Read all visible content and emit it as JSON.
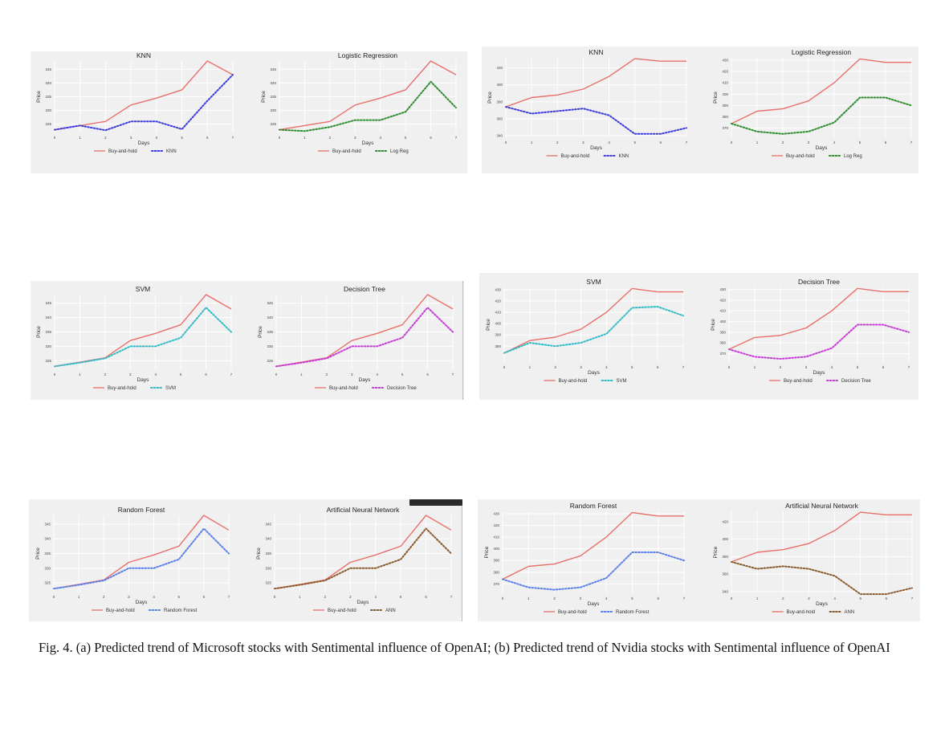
{
  "caption": "Fig. 4. (a) Predicted trend of Microsoft stocks with Sentimental influence of OpenAI; (b) Predicted trend of Nvidia stocks with Sentimental influence of OpenAI",
  "colors": {
    "buy_hold": "#e8706a",
    "knn": "#3b3bdc",
    "log_reg": "#2e8b2e",
    "svm": "#30bcc8",
    "decision_tree": "#c63bd8",
    "random_forest": "#5b7fe8",
    "ann": "#8b5a2b",
    "panel_bg": "#f0f0f0",
    "grid": "#ffffff"
  },
  "chart_data": [
    {
      "type": "line",
      "title": "KNN",
      "xlabel": "Days",
      "ylabel": "Price",
      "x": [
        0,
        1,
        2,
        3,
        4,
        5,
        6,
        7
      ],
      "xlim": [
        0,
        7
      ],
      "ylim": [
        322,
        348
      ],
      "yticks": [
        325,
        330,
        335,
        340,
        345
      ],
      "series": [
        {
          "name": "Buy-and-hold",
          "style": "solid",
          "color": "#e8706a",
          "values": [
            323,
            324.5,
            326,
            332,
            334.5,
            337.5,
            348,
            343
          ]
        },
        {
          "name": "KNN",
          "style": "dotted",
          "color": "#3b3bdc",
          "values": [
            323,
            324.5,
            322.8,
            326,
            326,
            323.2,
            333.5,
            343
          ]
        }
      ]
    },
    {
      "type": "line",
      "title": "Logistic Regression",
      "xlabel": "Days",
      "ylabel": "Price",
      "x": [
        0,
        1,
        2,
        3,
        4,
        5,
        6,
        7
      ],
      "xlim": [
        0,
        7
      ],
      "ylim": [
        322,
        348
      ],
      "yticks": [
        325,
        330,
        335,
        340,
        345
      ],
      "series": [
        {
          "name": "Buy-and-hold",
          "style": "solid",
          "color": "#e8706a",
          "values": [
            323,
            324.5,
            326,
            332,
            334.5,
            337.5,
            348,
            343
          ]
        },
        {
          "name": "Log Reg",
          "style": "dotted",
          "color": "#2e8b2e",
          "values": [
            323,
            322.5,
            324,
            326.5,
            326.5,
            329.5,
            340.5,
            331
          ]
        }
      ]
    },
    {
      "type": "line",
      "title": "KNN",
      "xlabel": "Days",
      "ylabel": "Price",
      "x": [
        0,
        1,
        2,
        3,
        4,
        5,
        6,
        7
      ],
      "xlim": [
        0,
        7
      ],
      "ylim": [
        338,
        432
      ],
      "yticks": [
        340,
        360,
        380,
        400,
        420
      ],
      "series": [
        {
          "name": "Buy-and-hold",
          "style": "solid",
          "color": "#e8706a",
          "values": [
            374,
            385,
            388,
            395,
            410,
            431,
            428,
            428
          ]
        },
        {
          "name": "KNN",
          "style": "dotted",
          "color": "#3b3bdc",
          "values": [
            374,
            366,
            369,
            372,
            364,
            342,
            342,
            349
          ]
        }
      ]
    },
    {
      "type": "line",
      "title": "Logistic Regression",
      "xlabel": "Days",
      "ylabel": "Price",
      "x": [
        0,
        1,
        2,
        3,
        4,
        5,
        6,
        7
      ],
      "xlim": [
        0,
        7
      ],
      "ylim": [
        362,
        432
      ],
      "yticks": [
        370,
        380,
        390,
        400,
        410,
        420,
        430
      ],
      "series": [
        {
          "name": "Buy-and-hold",
          "style": "solid",
          "color": "#e8706a",
          "values": [
            374,
            385,
            387,
            394,
            410,
            431,
            428,
            428
          ]
        },
        {
          "name": "Log Reg",
          "style": "dotted",
          "color": "#2e8b2e",
          "values": [
            374,
            367,
            365,
            367,
            375,
            397,
            397,
            390
          ]
        }
      ]
    },
    {
      "type": "line",
      "title": "SVM",
      "xlabel": "Days",
      "ylabel": "Price",
      "x": [
        0,
        1,
        2,
        3,
        4,
        5,
        6,
        7
      ],
      "xlim": [
        0,
        7
      ],
      "ylim": [
        322,
        348
      ],
      "yticks": [
        325,
        330,
        335,
        340,
        345
      ],
      "series": [
        {
          "name": "Buy-and-hold",
          "style": "solid",
          "color": "#e8706a",
          "values": [
            323,
            324.5,
            326,
            332,
            334.5,
            337.5,
            348,
            343
          ]
        },
        {
          "name": "SVM",
          "style": "dotted",
          "color": "#30bcc8",
          "values": [
            323,
            324.3,
            325.8,
            330,
            330,
            333,
            343.5,
            335
          ]
        }
      ]
    },
    {
      "type": "line",
      "title": "Decision Tree",
      "xlabel": "Days",
      "ylabel": "Price",
      "x": [
        0,
        1,
        2,
        3,
        4,
        5,
        6,
        7
      ],
      "xlim": [
        0,
        7
      ],
      "ylim": [
        322,
        348
      ],
      "yticks": [
        325,
        330,
        335,
        340,
        345
      ],
      "series": [
        {
          "name": "Buy-and-hold",
          "style": "solid",
          "color": "#e8706a",
          "values": [
            323,
            324.5,
            326,
            332,
            334.5,
            337.5,
            348,
            343
          ]
        },
        {
          "name": "Decision Tree",
          "style": "dotted",
          "color": "#c63bd8",
          "values": [
            323,
            324.3,
            325.8,
            330,
            330,
            333,
            343.5,
            335
          ]
        }
      ]
    },
    {
      "type": "line",
      "title": "SVM",
      "xlabel": "Days",
      "ylabel": "Price",
      "x": [
        0,
        1,
        2,
        3,
        4,
        5,
        6,
        7
      ],
      "xlim": [
        0,
        7
      ],
      "ylim": [
        366,
        432
      ],
      "yticks": [
        380,
        390,
        400,
        410,
        420,
        430
      ],
      "series": [
        {
          "name": "Buy-and-hold",
          "style": "solid",
          "color": "#e8706a",
          "values": [
            374,
            385,
            388,
            395,
            410,
            431,
            428,
            428
          ]
        },
        {
          "name": "SVM",
          "style": "dotted",
          "color": "#30bcc8",
          "values": [
            374,
            383,
            380,
            383,
            391,
            414,
            415,
            407
          ]
        }
      ]
    },
    {
      "type": "line",
      "title": "Decision Tree",
      "xlabel": "Days",
      "ylabel": "Price",
      "x": [
        0,
        1,
        2,
        3,
        4,
        5,
        6,
        7
      ],
      "xlim": [
        0,
        7
      ],
      "ylim": [
        362,
        432
      ],
      "yticks": [
        370,
        380,
        390,
        400,
        410,
        420,
        430
      ],
      "series": [
        {
          "name": "Buy-and-hold",
          "style": "solid",
          "color": "#e8706a",
          "values": [
            374,
            385,
            387,
            394,
            410,
            431,
            428,
            428
          ]
        },
        {
          "name": "Decision Tree",
          "style": "dotted",
          "color": "#c63bd8",
          "values": [
            374,
            367,
            365,
            367,
            375,
            397,
            397,
            390
          ]
        }
      ]
    },
    {
      "type": "line",
      "title": "Random Forest",
      "xlabel": "Days",
      "ylabel": "Price",
      "x": [
        0,
        1,
        2,
        3,
        4,
        5,
        6,
        7
      ],
      "xlim": [
        0,
        7
      ],
      "ylim": [
        322,
        348
      ],
      "yticks": [
        325,
        330,
        335,
        340,
        345
      ],
      "series": [
        {
          "name": "Buy-and-hold",
          "style": "solid",
          "color": "#e8706a",
          "values": [
            323,
            324.5,
            326,
            332,
            334.5,
            337.5,
            348,
            343
          ]
        },
        {
          "name": "Random Forest",
          "style": "dotted",
          "color": "#5b7fe8",
          "values": [
            323,
            324.3,
            325.8,
            330,
            330,
            333,
            343.5,
            335
          ]
        }
      ]
    },
    {
      "type": "line",
      "title": "Artificial Neural Network",
      "xlabel": "Days",
      "ylabel": "Price",
      "x": [
        0,
        1,
        2,
        3,
        4,
        5,
        6,
        7
      ],
      "xlim": [
        0,
        7
      ],
      "ylim": [
        322,
        348
      ],
      "yticks": [
        325,
        330,
        335,
        340,
        345
      ],
      "series": [
        {
          "name": "Buy-and-hold",
          "style": "solid",
          "color": "#e8706a",
          "values": [
            323,
            324.5,
            326,
            332,
            334.5,
            337.5,
            348,
            343
          ]
        },
        {
          "name": "ANN",
          "style": "dotted",
          "color": "#8b5a2b",
          "values": [
            323,
            324.3,
            325.8,
            330,
            330,
            333,
            343.5,
            335
          ]
        }
      ]
    },
    {
      "type": "line",
      "title": "Random Forest",
      "xlabel": "Days",
      "ylabel": "Price",
      "x": [
        0,
        1,
        2,
        3,
        4,
        5,
        6,
        7
      ],
      "xlim": [
        0,
        7
      ],
      "ylim": [
        362,
        432
      ],
      "yticks": [
        370,
        380,
        390,
        400,
        410,
        420,
        430
      ],
      "series": [
        {
          "name": "Buy-and-hold",
          "style": "solid",
          "color": "#e8706a",
          "values": [
            374,
            385,
            387,
            394,
            410,
            431,
            428,
            428
          ]
        },
        {
          "name": "Random Forest",
          "style": "dotted",
          "color": "#5b7fe8",
          "values": [
            374,
            367,
            365,
            367,
            375,
            397,
            397,
            390
          ]
        }
      ]
    },
    {
      "type": "line",
      "title": "Artificial Neural Network",
      "xlabel": "Days",
      "ylabel": "Price",
      "x": [
        0,
        1,
        2,
        3,
        4,
        5,
        6,
        7
      ],
      "xlim": [
        0,
        7
      ],
      "ylim": [
        338,
        432
      ],
      "yticks": [
        340,
        360,
        380,
        400,
        420
      ],
      "series": [
        {
          "name": "Buy-and-hold",
          "style": "solid",
          "color": "#e8706a",
          "values": [
            374,
            385,
            388,
            395,
            410,
            431,
            428,
            428
          ]
        },
        {
          "name": "ANN",
          "style": "dotted",
          "color": "#8b5a2b",
          "values": [
            374,
            366,
            369,
            366,
            358,
            337,
            337,
            344
          ]
        }
      ]
    }
  ]
}
